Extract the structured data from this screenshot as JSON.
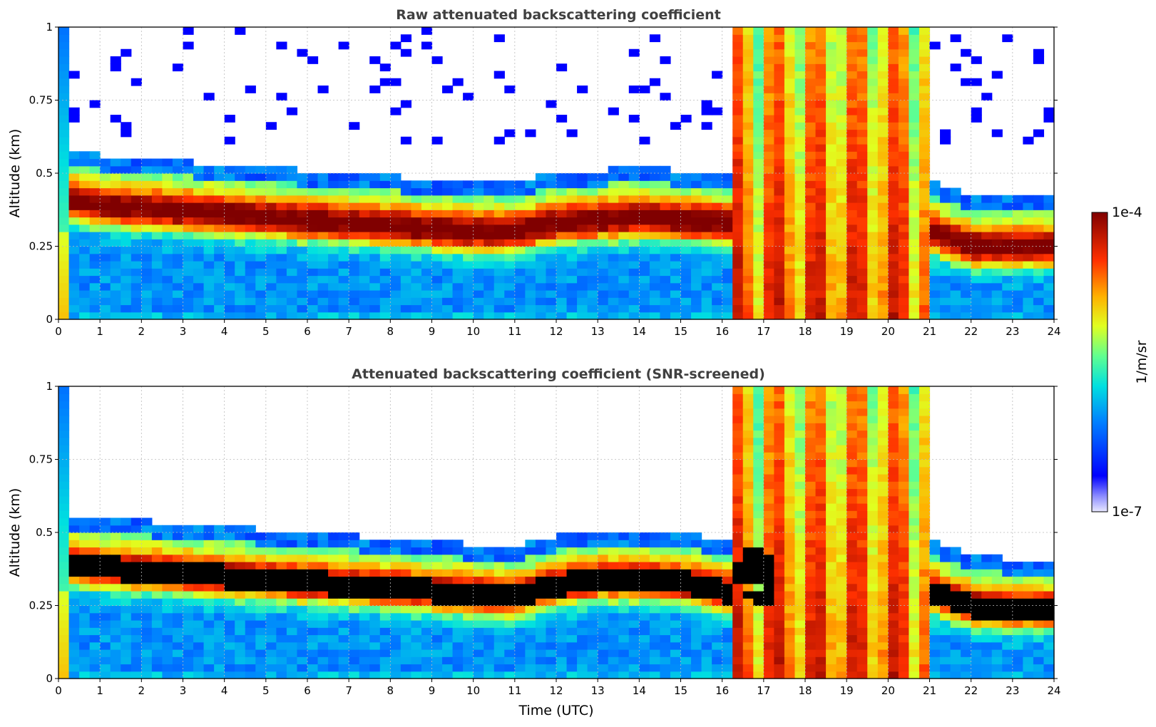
{
  "chart_data": [
    {
      "type": "heatmap",
      "title": "Raw attenuated backscattering coefficient",
      "xlabel": "",
      "ylabel": "Altitude (km)",
      "xlim": [
        0,
        24
      ],
      "ylim": [
        0,
        1
      ],
      "x_ticks": [
        "0",
        "1",
        "2",
        "3",
        "4",
        "5",
        "6",
        "7",
        "8",
        "9",
        "10",
        "11",
        "12",
        "13",
        "14",
        "15",
        "16",
        "17",
        "18",
        "19",
        "20",
        "21",
        "22",
        "23",
        "24"
      ],
      "y_ticks": [
        "0",
        "0.25",
        "0.5",
        "0.75",
        "1"
      ],
      "grid": true,
      "layers": {
        "aerosol_layer_center_km": [
          0.42,
          0.39,
          0.38,
          0.37,
          0.36,
          0.35,
          0.34,
          0.33,
          0.32,
          0.31,
          0.3,
          0.3,
          0.33,
          0.34,
          0.35,
          0.34,
          0.33,
          0.3,
          0.38,
          0.45,
          0.4,
          0.3,
          0.25,
          0.25,
          0.25
        ],
        "dense_cloud_hours": [
          [
            16.3,
            21.0
          ]
        ],
        "colorbar_range_log10": [
          -7,
          -4
        ]
      }
    },
    {
      "type": "heatmap",
      "title": "Attenuated backscattering coefficient (SNR-screened)",
      "xlabel": "Time (UTC)",
      "ylabel": "Altitude (km)",
      "xlim": [
        0,
        24
      ],
      "ylim": [
        0,
        1
      ],
      "x_ticks": [
        "0",
        "1",
        "2",
        "3",
        "4",
        "5",
        "6",
        "7",
        "8",
        "9",
        "10",
        "11",
        "12",
        "13",
        "14",
        "15",
        "16",
        "17",
        "18",
        "19",
        "20",
        "21",
        "22",
        "23",
        "24"
      ],
      "y_ticks": [
        "0",
        "0.25",
        "0.5",
        "0.75",
        "1"
      ],
      "grid": true,
      "layers": {
        "saturated_black_layer_center_km": [
          0.4,
          0.38,
          0.37,
          0.36,
          0.35,
          0.34,
          0.33,
          0.32,
          0.31,
          0.3,
          0.29,
          0.28,
          0.32,
          0.34,
          0.34,
          0.33,
          0.3,
          0.28,
          0.4,
          0.45,
          0.4,
          0.3,
          0.25,
          0.24,
          0.24
        ],
        "dense_cloud_hours": [
          [
            16.3,
            21.0
          ]
        ],
        "colorbar_range_log10": [
          -7,
          -4
        ]
      }
    }
  ],
  "colorbar": {
    "max_label": "1e-4",
    "min_label": "1e-7",
    "unit_label": "1/m/sr"
  },
  "colors": {
    "title": "#404040",
    "grid": "#bbbbbb"
  }
}
